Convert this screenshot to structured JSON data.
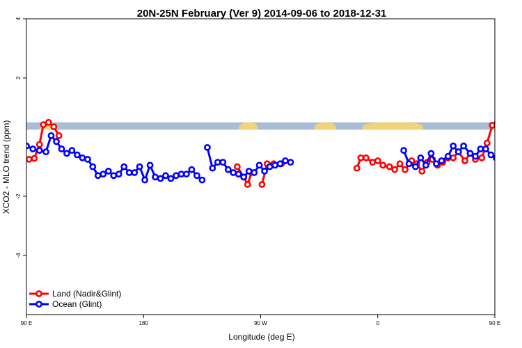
{
  "chart_data": {
    "type": "line",
    "title": "20N-25N February (Ver 9)   2014-09-06 to 2018-12-31",
    "xlabel": "Longitude (deg E)",
    "ylabel": "XCO2 - MLO trend (ppm)",
    "xlim": [
      90,
      450
    ],
    "ylim": [
      -6,
      4
    ],
    "x_ticks": [
      {
        "value": 90,
        "label": "90 E"
      },
      {
        "value": 180,
        "label": "180"
      },
      {
        "value": 270,
        "label": "90 W"
      },
      {
        "value": 360,
        "label": "0"
      },
      {
        "value": 450,
        "label": "90 E"
      },
      {
        "value": 540,
        "label": "180"
      }
    ],
    "y_ticks": [
      {
        "value": 4,
        "label": "4"
      },
      {
        "value": 2,
        "label": "2"
      },
      {
        "value": -2,
        "label": "-2"
      },
      {
        "value": -4,
        "label": "-4"
      }
    ],
    "land_strip": {
      "y_range": [
        0.25,
        0.5
      ],
      "ocean_color": "#a9bed6",
      "land_color": "#f0d37a"
    },
    "legend_position": "bottom-left",
    "series": [
      {
        "name": "Land (Nadir&Glint)",
        "color": "#ff0000",
        "segments": [
          [
            [
              92,
              -0.75
            ],
            [
              96,
              -0.72
            ],
            [
              100,
              -0.25
            ],
            [
              103,
              0.42
            ],
            [
              107,
              0.5
            ],
            [
              111,
              0.35
            ],
            [
              115,
              0.05
            ]
          ],
          [
            [
              252,
              -1.0
            ],
            [
              257,
              -1.35
            ],
            [
              260,
              -1.6
            ],
            [
              263,
              -1.2
            ]
          ],
          [
            [
              271,
              -1.6
            ],
            [
              275,
              -0.9
            ],
            [
              280,
              -0.9
            ],
            [
              286,
              -0.9
            ]
          ],
          [
            [
              344,
              -1.05
            ],
            [
              347,
              -0.7
            ],
            [
              351,
              -0.7
            ],
            [
              356,
              -0.85
            ],
            [
              360,
              -0.8
            ],
            [
              364,
              -0.95
            ],
            [
              369,
              -1.0
            ],
            [
              373,
              -1.1
            ],
            [
              377,
              -0.9
            ],
            [
              381,
              -1.1
            ],
            [
              386,
              -0.8
            ],
            [
              390,
              -0.9
            ],
            [
              394,
              -1.15
            ],
            [
              398,
              -0.85
            ],
            [
              402,
              -0.75
            ],
            [
              406,
              -0.95
            ],
            [
              410,
              -0.85
            ],
            [
              414,
              -0.7
            ],
            [
              418,
              -0.7
            ],
            [
              422,
              -0.5
            ],
            [
              427,
              -0.8
            ],
            [
              431,
              -0.55
            ],
            [
              435,
              -0.75
            ],
            [
              440,
              -0.7
            ],
            [
              444,
              -0.2
            ],
            [
              448,
              0.4
            ],
            [
              452,
              0.5
            ],
            [
              456,
              0.35
            ],
            [
              460,
              0.05
            ]
          ]
        ]
      },
      {
        "name": "Ocean (Glint)",
        "color": "#0000ff",
        "segments": [
          [
            [
              90,
              -0.3
            ],
            [
              95,
              -0.4
            ],
            [
              100,
              -0.45
            ],
            [
              105,
              -0.5
            ],
            [
              109,
              0.05
            ],
            [
              113,
              -0.15
            ],
            [
              117,
              -0.4
            ],
            [
              121,
              -0.55
            ],
            [
              125,
              -0.45
            ],
            [
              129,
              -0.6
            ],
            [
              133,
              -0.7
            ],
            [
              137,
              -0.75
            ],
            [
              141,
              -1.0
            ],
            [
              145,
              -1.3
            ],
            [
              149,
              -1.25
            ],
            [
              153,
              -1.15
            ],
            [
              157,
              -1.3
            ],
            [
              161,
              -1.25
            ],
            [
              165,
              -1.0
            ],
            [
              169,
              -1.2
            ],
            [
              173,
              -1.2
            ],
            [
              177,
              -1.0
            ],
            [
              181,
              -1.45
            ],
            [
              185,
              -0.95
            ],
            [
              189,
              -1.35
            ],
            [
              193,
              -1.4
            ],
            [
              197,
              -1.3
            ],
            [
              201,
              -1.4
            ],
            [
              205,
              -1.3
            ],
            [
              209,
              -1.25
            ],
            [
              213,
              -1.25
            ],
            [
              217,
              -1.1
            ],
            [
              221,
              -1.3
            ],
            [
              225,
              -1.45
            ]
          ],
          [
            [
              229,
              -0.35
            ],
            [
              233,
              -1.05
            ],
            [
              237,
              -0.85
            ],
            [
              241,
              -0.85
            ],
            [
              245,
              -1.1
            ],
            [
              249,
              -1.2
            ],
            [
              253,
              -1.25
            ],
            [
              257,
              -1.35
            ],
            [
              261,
              -1.15
            ],
            [
              265,
              -1.2
            ],
            [
              269,
              -0.95
            ],
            [
              273,
              -1.15
            ],
            [
              277,
              -1.0
            ],
            [
              281,
              -0.95
            ],
            [
              285,
              -0.9
            ],
            [
              289,
              -0.8
            ],
            [
              293,
              -0.85
            ]
          ],
          [
            [
              380,
              -0.45
            ],
            [
              384,
              -0.9
            ],
            [
              389,
              -1.0
            ],
            [
              393,
              -0.7
            ],
            [
              397,
              -0.95
            ],
            [
              401,
              -0.55
            ],
            [
              405,
              -0.9
            ],
            [
              409,
              -0.8
            ],
            [
              414,
              -0.65
            ],
            [
              418,
              -0.3
            ],
            [
              422,
              -0.5
            ],
            [
              426,
              -0.3
            ],
            [
              431,
              -0.55
            ],
            [
              435,
              -0.65
            ],
            [
              439,
              -0.4
            ],
            [
              443,
              -0.4
            ],
            [
              447,
              -0.6
            ],
            [
              451,
              -0.7
            ],
            [
              455,
              -0.5
            ],
            [
              459,
              0.05
            ],
            [
              463,
              -0.15
            ],
            [
              467,
              -0.4
            ],
            [
              471,
              -0.55
            ],
            [
              475,
              -0.45
            ]
          ]
        ]
      }
    ]
  }
}
